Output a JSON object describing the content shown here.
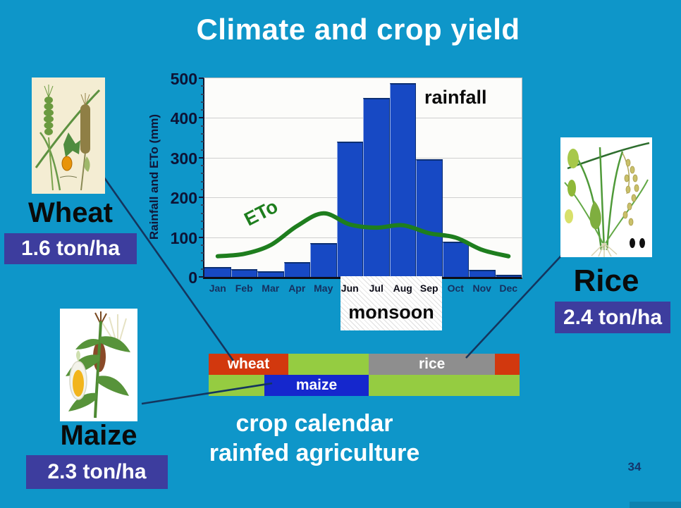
{
  "slide": {
    "title": "Climate and crop yield",
    "page_number": "34",
    "caption": {
      "line1": "crop calendar",
      "line2": "rainfed agriculture"
    }
  },
  "chart_data": {
    "type": "bar",
    "title": "",
    "xlabel": "",
    "ylabel": "Rainfall and ETo (mm)",
    "ylim": [
      0,
      500
    ],
    "y_major_ticks": [
      0,
      100,
      200,
      300,
      400,
      500
    ],
    "y_minor_step": 20,
    "grid": true,
    "categories": [
      "Jan",
      "Feb",
      "Mar",
      "Apr",
      "May",
      "Jun",
      "Jul",
      "Aug",
      "Sep",
      "Oct",
      "Nov",
      "Dec"
    ],
    "series": [
      {
        "name": "rainfall",
        "type": "bar",
        "color": "#1749c4",
        "values": [
          24,
          20,
          14,
          37,
          86,
          340,
          450,
          488,
          297,
          88,
          17,
          5
        ]
      },
      {
        "name": "ETo",
        "type": "line",
        "color": "#1e7e1e",
        "values": [
          52,
          58,
          80,
          128,
          160,
          132,
          124,
          130,
          110,
          99,
          68,
          52
        ]
      }
    ],
    "annotations": {
      "bar_series_label": "rainfall",
      "line_series_label": "ETo",
      "monsoon_label": "monsoon",
      "monsoon_months": [
        "Jun",
        "Jul",
        "Aug",
        "Sep"
      ]
    }
  },
  "crops": {
    "wheat": {
      "name": "Wheat",
      "yield": "1.6 ton/ha"
    },
    "maize": {
      "name": "Maize",
      "yield": "2.3 ton/ha"
    },
    "rice": {
      "name": "Rice",
      "yield": "2.4 ton/ha"
    }
  },
  "calendar": {
    "row1": [
      {
        "label": "wheat",
        "color": "#d2380e",
        "from": 0,
        "to": 0.256
      },
      {
        "label": "",
        "color": "#95cc41",
        "from": 0.256,
        "to": 0.515
      },
      {
        "label": "rice",
        "color": "#8e8e8e",
        "from": 0.515,
        "to": 0.921
      },
      {
        "label": "",
        "color": "#d2380e",
        "from": 0.921,
        "to": 1
      }
    ],
    "row2": [
      {
        "label": "",
        "color": "#95cc41",
        "from": 0,
        "to": 0.179
      },
      {
        "label": "maize",
        "color": "#1527cd",
        "from": 0.179,
        "to": 0.515
      },
      {
        "label": "",
        "color": "#95cc41",
        "from": 0.515,
        "to": 1
      }
    ]
  },
  "colors": {
    "background": "#0e96c9",
    "yield_badge": "#3d3d9e",
    "connector_line": "#14355e",
    "rainfall_bar": "#1749c4",
    "eto_line": "#1e7e1e"
  }
}
